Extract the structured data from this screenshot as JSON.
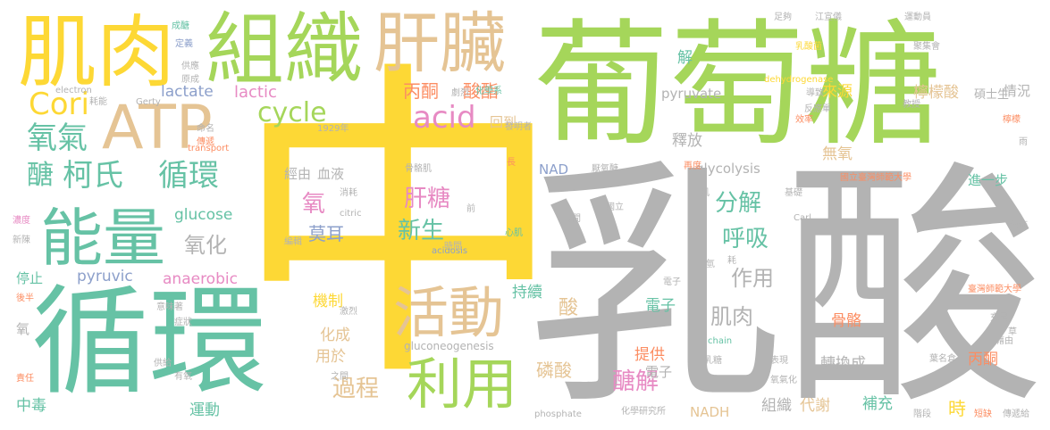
{
  "cloud": {
    "colors": {
      "yellow": "#fdd835",
      "green": "#a5d65a",
      "gray": "#b3b3b3",
      "teal": "#66c2a5",
      "tan": "#e5c494",
      "pink": "#e78ac3",
      "orange": "#fc8d62",
      "blue": "#8da0cb"
    },
    "words": [
      "中",
      "乳酸",
      "葡萄糖",
      "循環",
      "肌肉",
      "組織",
      "肝臟",
      "ATP",
      "能量",
      "活動",
      "利用",
      "Cori",
      "氧氣",
      "醣",
      "柯氏",
      "循環",
      "cycle",
      "acid",
      "丙酮",
      "酸酯",
      "lactic",
      "lactate",
      "分解",
      "呼吸",
      "肝糖",
      "新生",
      "氧",
      "莫耳",
      "氧化",
      "glucose",
      "pyruvate",
      "來源",
      "檸檬酸",
      "情況",
      "解",
      "釋放",
      "無氧",
      "進一步",
      "glycolysis",
      "NAD",
      "NADH",
      "作用",
      "肌肉",
      "酸",
      "機制",
      "化成",
      "用於",
      "過程",
      "磷酸",
      "醣解",
      "持續",
      "電子",
      "提供",
      "骨骼",
      "轉換成",
      "丙酮",
      "時",
      "補充",
      "代謝",
      "組織",
      "運動",
      "中毒",
      "停止",
      "氧",
      "pyruvic",
      "anaerobic",
      "經由",
      "血液",
      "回到",
      "gluconeogenesis",
      "電子",
      "成醣",
      "定義",
      "electron",
      "耗能",
      "Gerty",
      "供應",
      "原成",
      "命名",
      "傳遞",
      "化學系",
      "劇烈",
      "發明者",
      "1929年",
      "骨骼肌",
      "厭氧醣",
      "長",
      "transport",
      "消耗",
      "citric",
      "前",
      "acidosis",
      "時間",
      "心肌",
      "肌",
      "耗",
      "Carl",
      "國立",
      "基礎",
      "期間",
      "再度",
      "國立臺灣師範大學",
      "臺灣師範大學",
      "dehydrogenase",
      "反應單",
      "導致",
      "效率",
      "教授",
      "碩士生",
      "檸檬",
      "江宣儀",
      "運動員",
      "足夠",
      "乳酸菌",
      "聚集會",
      "傳遞給",
      "短缺",
      "階段",
      "葉名倉",
      "chain",
      "乳糖",
      "表現",
      "氧氣化",
      "化學研究所",
      "phosphate",
      "意味著",
      "症狀",
      "供給",
      "有氧",
      "責任",
      "後半",
      "濃度",
      "新陳",
      "雨",
      "運佈",
      "草",
      "藉由",
      "充足",
      "之間",
      "激烈",
      "編輯",
      "氫",
      "電子"
    ]
  }
}
